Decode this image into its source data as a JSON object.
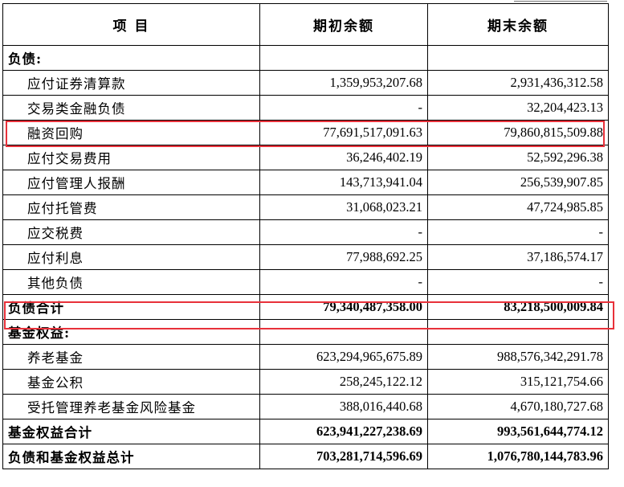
{
  "header": {
    "col_item": "项  目",
    "col_begin": "期初余额",
    "col_end": "期末余额"
  },
  "rows": [
    {
      "label": "负债:",
      "begin": "",
      "end": ""
    },
    {
      "label": "应付证券清算款",
      "begin": "1,359,953,207.68",
      "end": "2,931,436,312.58"
    },
    {
      "label": "交易类金融负债",
      "begin": "-",
      "end": "32,204,423.13"
    },
    {
      "label": "融资回购",
      "begin": "77,691,517,091.63",
      "end": "79,860,815,509.88"
    },
    {
      "label": "应付交易费用",
      "begin": "36,246,402.19",
      "end": "52,592,296.38"
    },
    {
      "label": "应付管理人报酬",
      "begin": "143,713,941.04",
      "end": "256,539,907.85"
    },
    {
      "label": "应付托管费",
      "begin": "31,068,023.21",
      "end": "47,724,985.85"
    },
    {
      "label": "应交税费",
      "begin": "-",
      "end": "-"
    },
    {
      "label": "应付利息",
      "begin": "77,988,692.25",
      "end": "37,186,574.17"
    },
    {
      "label": "其他负债",
      "begin": "-",
      "end": "-"
    },
    {
      "label": "负债合计",
      "begin": "79,340,487,358.00",
      "end": "83,218,500,009.84"
    },
    {
      "label": "基金权益:",
      "begin": "",
      "end": ""
    },
    {
      "label": "养老基金",
      "begin": "623,294,965,675.89",
      "end": "988,576,342,291.78"
    },
    {
      "label": "基金公积",
      "begin": "258,245,122.12",
      "end": "315,121,754.66"
    },
    {
      "label": "受托管理养老基金风险基金",
      "begin": "388,016,440.68",
      "end": "4,670,180,727.68"
    },
    {
      "label": "基金权益合计",
      "begin": "623,941,227,238.69",
      "end": "993,561,644,774.12"
    },
    {
      "label": "负债和基金权益总计",
      "begin": "703,281,714,596.69",
      "end": "1,076,780,144,783.96"
    }
  ],
  "highlight_color": "#e8313a"
}
